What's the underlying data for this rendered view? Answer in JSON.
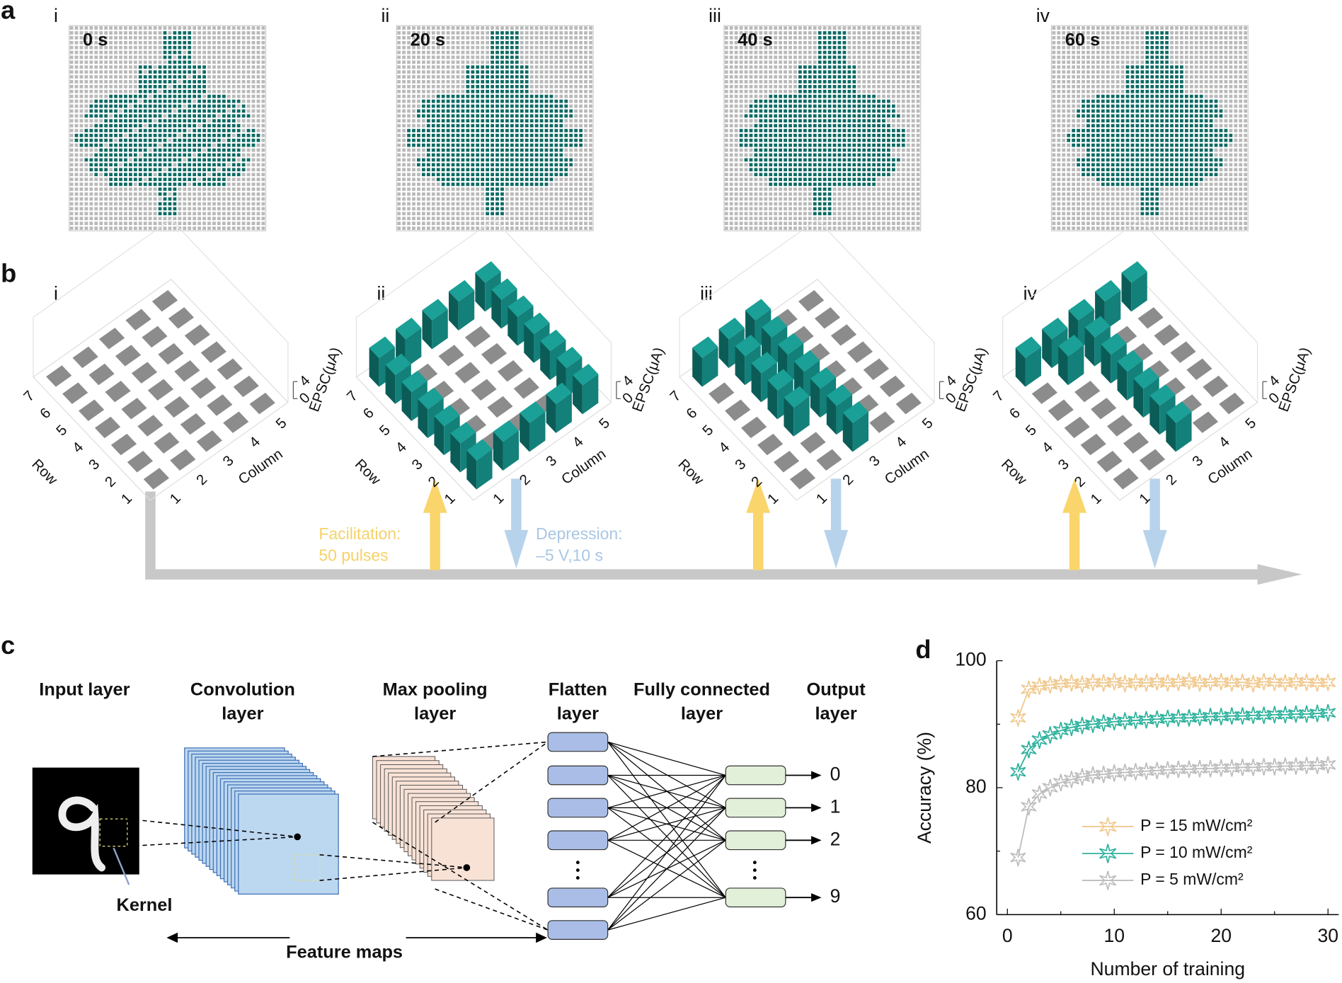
{
  "panel_a": {
    "label": "a",
    "frames": [
      {
        "numeral": "i",
        "time": "0 s"
      },
      {
        "numeral": "ii",
        "time": "20 s"
      },
      {
        "numeral": "iii",
        "time": "40 s"
      },
      {
        "numeral": "iv",
        "time": "60 s"
      }
    ]
  },
  "panel_b": {
    "label": "b",
    "numerals": [
      "i",
      "ii",
      "iii",
      "iv"
    ],
    "row_axis": "Row",
    "column_axis": "Column",
    "z_axis": "EPSC(μA)",
    "rows": [
      1,
      2,
      3,
      4,
      5,
      6,
      7
    ],
    "columns": [
      1,
      2,
      3,
      4,
      5
    ],
    "zlim": [
      0,
      4
    ],
    "zticks": [
      0,
      4
    ],
    "epsc": [
      [
        [
          0,
          0,
          0,
          0,
          0
        ],
        [
          0,
          0,
          0,
          0,
          0
        ],
        [
          0,
          0,
          0,
          0,
          0
        ],
        [
          0,
          0,
          0,
          0,
          0
        ],
        [
          0,
          0,
          0,
          0,
          0
        ],
        [
          0,
          0,
          0,
          0,
          0
        ],
        [
          0,
          0,
          0,
          0,
          0
        ]
      ],
      [
        [
          3,
          3,
          3,
          3,
          3
        ],
        [
          3,
          0,
          0,
          0,
          3
        ],
        [
          3,
          0,
          0,
          0,
          3
        ],
        [
          3,
          0,
          0,
          0,
          3
        ],
        [
          3,
          0,
          0,
          0,
          3
        ],
        [
          3,
          0,
          0,
          0,
          3
        ],
        [
          3,
          3,
          3,
          3,
          3
        ]
      ],
      [
        [
          0,
          0,
          3,
          0,
          0
        ],
        [
          0,
          0,
          3,
          0,
          0
        ],
        [
          0,
          3,
          3,
          0,
          0
        ],
        [
          0,
          3,
          3,
          0,
          0
        ],
        [
          0,
          3,
          3,
          0,
          0
        ],
        [
          0,
          3,
          3,
          0,
          0
        ],
        [
          3,
          3,
          3,
          0,
          0
        ]
      ],
      [
        [
          0,
          0,
          3,
          0,
          0
        ],
        [
          0,
          0,
          3,
          0,
          0
        ],
        [
          0,
          0,
          3,
          0,
          0
        ],
        [
          0,
          0,
          3,
          0,
          0
        ],
        [
          0,
          0,
          3,
          0,
          0
        ],
        [
          0,
          3,
          3,
          0,
          0
        ],
        [
          3,
          3,
          3,
          3,
          3
        ]
      ]
    ],
    "facilitation": [
      "Facilitation:",
      "50 pulses"
    ],
    "depression": [
      "Depression:",
      "–5 V,10 s"
    ]
  },
  "panel_c": {
    "label": "c",
    "layers": [
      [
        "Input layer"
      ],
      [
        "Convolution",
        "layer"
      ],
      [
        "Max pooling",
        "layer"
      ],
      [
        "Flatten",
        "layer"
      ],
      [
        "Fully connected",
        "layer"
      ],
      [
        "Output",
        "layer"
      ]
    ],
    "kernel": "Kernel",
    "feature_maps": "Feature maps",
    "outputs": [
      0,
      1,
      2,
      9
    ]
  },
  "chart_data": {
    "type": "line",
    "label": "d",
    "xlabel": "Number of training",
    "ylabel": "Accuracy (%)",
    "xlim": [
      -1,
      31
    ],
    "ylim": [
      60,
      100
    ],
    "xticks": [
      0,
      10,
      20,
      30
    ],
    "yticks": [
      60,
      80,
      100
    ],
    "xticks_minor": [
      5,
      15,
      25
    ],
    "yticks_minor": [
      70,
      90
    ],
    "x": [
      1,
      2,
      3,
      4,
      5,
      6,
      7,
      8,
      9,
      10,
      11,
      12,
      13,
      14,
      15,
      16,
      17,
      18,
      19,
      20,
      21,
      22,
      23,
      24,
      25,
      26,
      27,
      28,
      29,
      30
    ],
    "series": [
      {
        "name": "P = 15 mW/cm²",
        "color": "#f0c98f",
        "values": [
          91,
          95.5,
          96,
          96.2,
          96.4,
          96.5,
          96.3,
          96.6,
          96.5,
          96.7,
          96.4,
          96.6,
          96.5,
          96.7,
          96.5,
          96.6,
          96.8,
          96.5,
          96.6,
          96.7,
          96.5,
          96.6,
          96.4,
          96.7,
          96.6,
          96.5,
          96.7,
          96.6,
          96.5,
          96.6
        ]
      },
      {
        "name": "P = 10 mW/cm²",
        "color": "#2fb29d",
        "values": [
          82.5,
          86,
          87.5,
          88.3,
          89,
          89.5,
          89.8,
          90,
          90.2,
          90.4,
          90.5,
          90.6,
          90.7,
          90.8,
          90.9,
          91,
          91,
          91.1,
          91.2,
          91.2,
          91.3,
          91.3,
          91.4,
          91.4,
          91.5,
          91.5,
          91.6,
          91.6,
          91.7,
          91.8
        ]
      },
      {
        "name": "P = 5 mW/cm²",
        "color": "#bdbdbd",
        "values": [
          69,
          77,
          79,
          80,
          80.8,
          81.3,
          81.7,
          82,
          82.1,
          82.3,
          82.4,
          82.5,
          82.6,
          82.7,
          82.8,
          82.9,
          82.9,
          83,
          83,
          83.1,
          83.1,
          83.2,
          83.2,
          83.3,
          83.3,
          83.4,
          83.4,
          83.5,
          83.5,
          83.6
        ]
      }
    ],
    "legend": "lower right"
  }
}
